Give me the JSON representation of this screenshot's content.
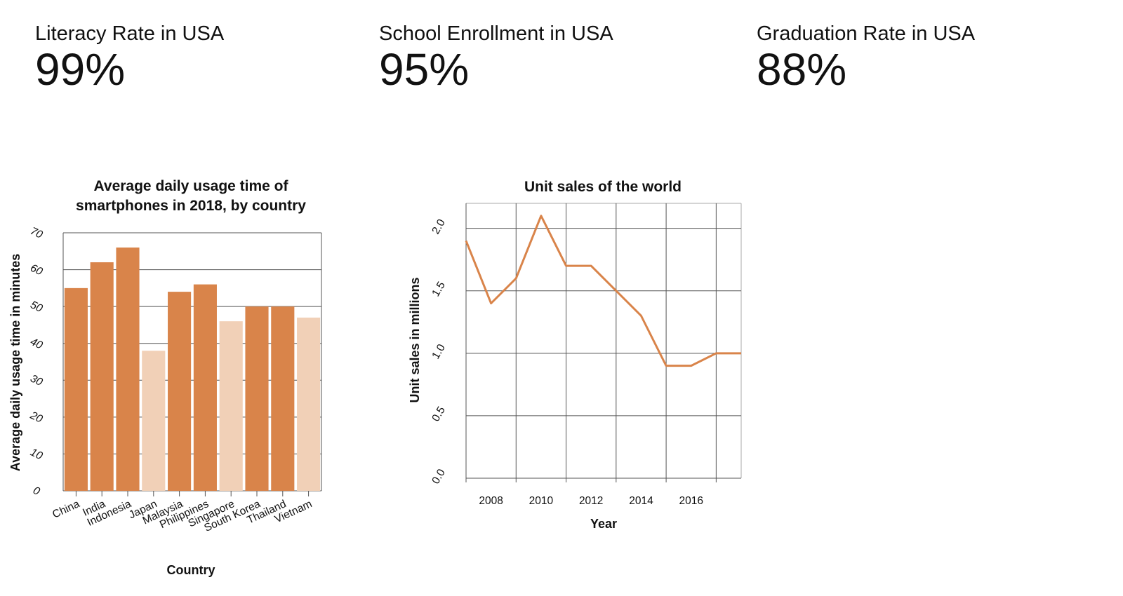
{
  "kpis": [
    {
      "label": "Literacy Rate in USA",
      "value": "99%"
    },
    {
      "label": "School Enrollment in USA",
      "value": "95%"
    },
    {
      "label": "Graduation Rate in USA",
      "value": "88%"
    }
  ],
  "colors": {
    "bar_dark": "#D9844A",
    "bar_light": "#F1D0B7",
    "line": "#D9844A",
    "grid": "#555555"
  },
  "chart_data": [
    {
      "type": "bar",
      "title_lines": [
        "Average daily usage time of",
        "smartphones in 2018, by country"
      ],
      "xlabel": "Country",
      "ylabel": "Average daily usage time in minutes",
      "categories": [
        "China",
        "India",
        "Indonesia",
        "Japan",
        "Malaysia",
        "Philippines",
        "Singapore",
        "South Korea",
        "Thailand",
        "Vietnam"
      ],
      "values": [
        55,
        62,
        66,
        38,
        54,
        56,
        46,
        50,
        50,
        47
      ],
      "highlight": [
        true,
        true,
        true,
        false,
        true,
        true,
        false,
        true,
        true,
        false
      ],
      "ylim": [
        0,
        70
      ],
      "yticks": [
        "0",
        "10",
        "20",
        "30",
        "40",
        "50",
        "60",
        "70"
      ],
      "grid": "horizontal"
    },
    {
      "type": "line",
      "title": "Unit sales of the world",
      "xlabel": "Year",
      "ylabel": "Unit sales in millions",
      "x": [
        2007,
        2008,
        2009,
        2010,
        2011,
        2012,
        2013,
        2014,
        2015,
        2016,
        2017,
        2018
      ],
      "values": [
        1.9,
        1.4,
        1.6,
        2.1,
        1.7,
        1.7,
        1.5,
        1.3,
        0.9,
        0.9,
        1.0,
        1.0
      ],
      "xticks": [
        "2008",
        "2010",
        "2012",
        "2014",
        "2016"
      ],
      "yticks": [
        "0.0",
        "0.5",
        "1.0",
        "1.5",
        "2.0"
      ],
      "ylim": [
        0,
        2.2
      ],
      "grid": "both"
    }
  ]
}
